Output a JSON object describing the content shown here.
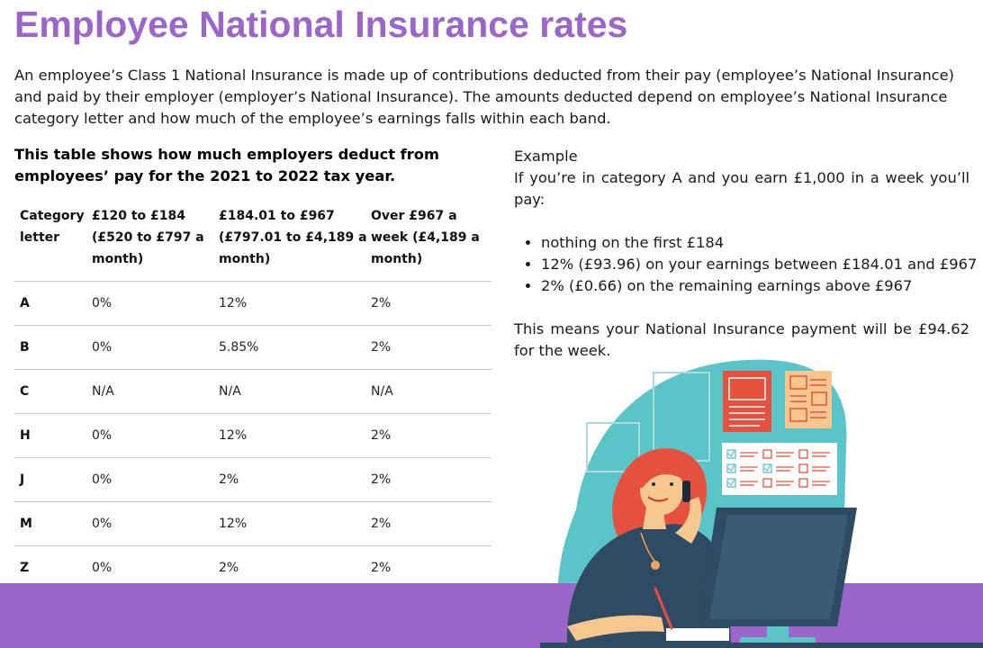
{
  "page": {
    "title": "Employee National Insurance rates",
    "intro": "An employee’s Class 1 National Insurance is made up of contributions deducted from their pay (employee’s National Insurance) and paid by their employer (employer’s National Insurance). The amounts deducted depend on employee’s National Insurance category letter and how much of the employee’s earnings falls within each band.",
    "table_heading": "This table shows how much employers deduct from employees’ pay for the 2021 to 2022 tax year."
  },
  "table": {
    "headers": [
      "Category letter",
      "£120 to £184 (£520 to £797 a month)",
      "£184.01 to £967 (£797.01 to £4,189 a month)",
      "Over £967 a week (£4,189 a month)"
    ],
    "rows": [
      [
        "A",
        "0%",
        "12%",
        "2%"
      ],
      [
        "B",
        "0%",
        "5.85%",
        "2%"
      ],
      [
        "C",
        "N/A",
        "N/A",
        "N/A"
      ],
      [
        "H",
        "0%",
        "12%",
        "2%"
      ],
      [
        "J",
        "0%",
        "2%",
        "2%"
      ],
      [
        "M",
        "0%",
        "12%",
        "2%"
      ],
      [
        "Z",
        "0%",
        "2%",
        "2%"
      ]
    ]
  },
  "example": {
    "heading": "Example",
    "scenario": "If you’re in category A and you earn £1,000 in a week you’ll pay:",
    "bullets": [
      "nothing on the first £184",
      "12% (£93.96) on your earnings between £184.01 and £967",
      "2% (£0.66) on the remaining earnings above £967"
    ],
    "conclusion": "This means your National Insurance payment will be £94.62 for the week."
  },
  "colors": {
    "accent": "#9b66c9",
    "teal": "#5bc4c9",
    "hair": "#e5503f",
    "navy": "#2f4a63",
    "skin": "#f6c890",
    "card_red": "#e8503e",
    "card_orange": "#f7c68e"
  }
}
